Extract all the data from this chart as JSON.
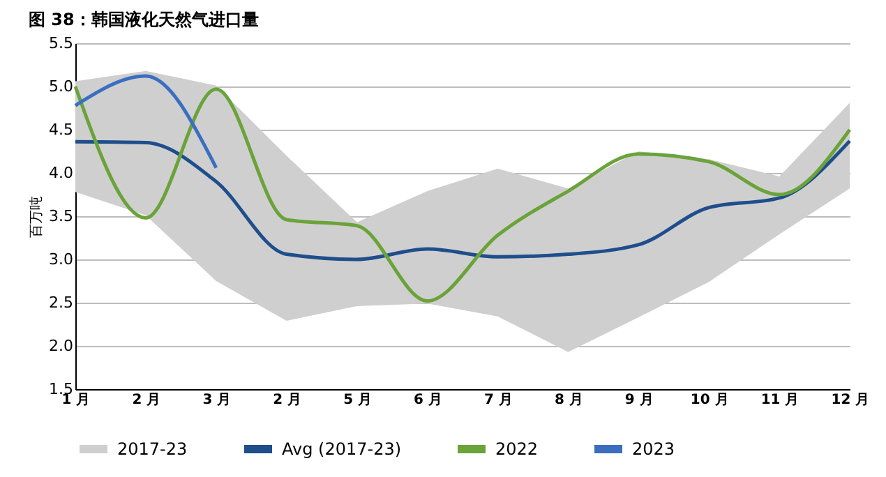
{
  "chart_data": {
    "type": "line",
    "title": "图 38：韩国液化天然气进口量",
    "ylabel": "百万吨",
    "categories": [
      "1 月",
      "2 月",
      "3 月",
      "2 月",
      "5 月",
      "6 月",
      "7 月",
      "8 月",
      "9 月",
      "10 月",
      "11 月",
      "12 月"
    ],
    "series": [
      {
        "name": "2017-23",
        "type": "area",
        "color": "#d0cfcf",
        "values": [
          null,
          null,
          null,
          null,
          null,
          null,
          null,
          null,
          null,
          null,
          null,
          null
        ],
        "lower": [
          3.78,
          3.51,
          2.75,
          2.29,
          2.46,
          2.49,
          2.34,
          1.93,
          2.33,
          2.74,
          3.29,
          3.82
        ],
        "upper": [
          5.06,
          5.18,
          5.01,
          4.2,
          3.43,
          3.79,
          4.05,
          3.82,
          4.25,
          4.16,
          3.96,
          4.81
        ]
      },
      {
        "name": "Avg (2017-23)",
        "color": "#1f4e8c",
        "values": [
          4.36,
          4.35,
          3.9,
          3.06,
          3.0,
          3.12,
          3.03,
          3.06,
          3.17,
          3.6,
          3.71,
          4.37
        ]
      },
      {
        "name": "2022",
        "color": "#6aa33a",
        "values": [
          5.0,
          3.48,
          4.97,
          3.46,
          3.39,
          2.52,
          3.28,
          3.79,
          4.22,
          4.13,
          3.75,
          4.5
        ]
      },
      {
        "name": "2023",
        "color": "#3a6fc0",
        "values": [
          4.78,
          5.12,
          4.06,
          null,
          null,
          null,
          null,
          null,
          null,
          null,
          null,
          null
        ]
      }
    ],
    "ylim": [
      1.5,
      5.5
    ],
    "yticks": [
      {
        "value": 1.5,
        "label": "1.5"
      },
      {
        "value": 2,
        "label": "2.0"
      },
      {
        "value": 2.5,
        "label": "2.5"
      },
      {
        "value": 3,
        "label": "3.0"
      },
      {
        "value": 3.5,
        "label": "3.5"
      },
      {
        "value": 4,
        "label": "4.0"
      },
      {
        "value": 4.5,
        "label": "4.5"
      },
      {
        "value": 5,
        "label": "5.0"
      },
      {
        "value": 5.5,
        "label": "5.5"
      }
    ],
    "grid": "y",
    "legend": "bottom"
  }
}
